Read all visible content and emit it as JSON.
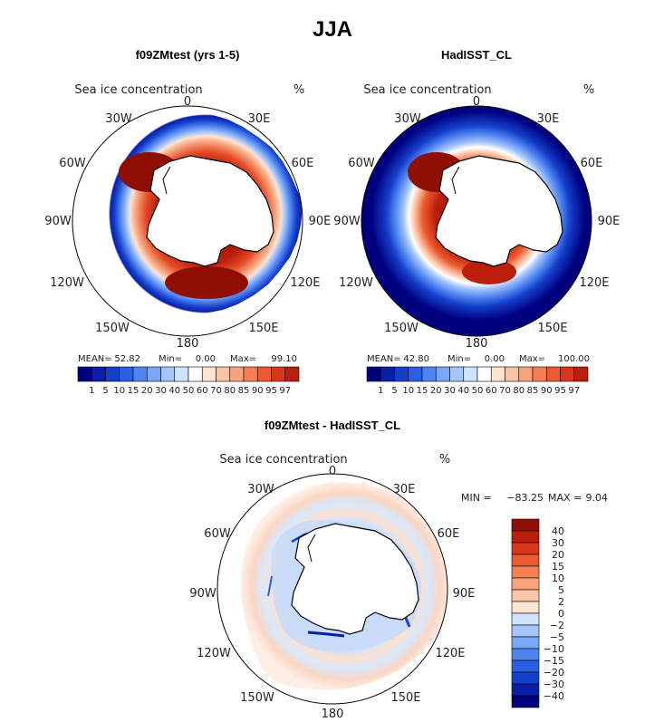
{
  "figure_title": "JJA",
  "colors": {
    "ice_scale": [
      "#00007f",
      "#0a1fa8",
      "#1540cc",
      "#2a5fe3",
      "#4f84f0",
      "#7aa6f6",
      "#a6c6fb",
      "#d0e3fe",
      "#ffffff",
      "#fde3d2",
      "#fbc4a6",
      "#f8a27c",
      "#f57f52",
      "#ed5a2f",
      "#d9361a",
      "#b91f0c",
      "#8f0f04",
      "#6b0000"
    ],
    "diff_scale": [
      "#00007f",
      "#0a1fa8",
      "#1540cc",
      "#2a5fe3",
      "#4f84f0",
      "#7aa6f6",
      "#a6c6fb",
      "#d0e3fe",
      "#fde3d2",
      "#fbc4a6",
      "#f8a27c",
      "#f57f52",
      "#ed5a2f",
      "#d9361a",
      "#b91f0c",
      "#8f0f04"
    ]
  },
  "panels": [
    {
      "title": "f09ZMtest (yrs 1-5)",
      "variable": "Sea ice concentration",
      "units": "%",
      "stats": {
        "mean_label": "MEAN=",
        "mean": "52.82",
        "min_label": "Min=",
        "min": "0.00",
        "max_label": "Max=",
        "max": "99.10"
      },
      "colorbar_labels": [
        "1",
        "5",
        "10",
        "15",
        "20",
        "30",
        "40",
        "50",
        "60",
        "70",
        "80",
        "85",
        "90",
        "95",
        "97"
      ],
      "lon_labels": {
        "top": "0",
        "tr": "30E",
        "right1": "60E",
        "right2": "90E",
        "right3": "120E",
        "br": "150E",
        "bottom": "180",
        "bl": "150W",
        "left3": "120W",
        "left2": "90W",
        "left1": "60W",
        "tl": "30W"
      }
    },
    {
      "title": "HadISST_CL",
      "variable": "Sea ice concentration",
      "units": "%",
      "stats": {
        "mean_label": "MEAN=",
        "mean": "42.80",
        "min_label": "Min=",
        "min": "0.00",
        "max_label": "Max=",
        "max": "100.00"
      },
      "colorbar_labels": [
        "1",
        "5",
        "10",
        "15",
        "20",
        "30",
        "40",
        "50",
        "60",
        "70",
        "80",
        "85",
        "90",
        "95",
        "97"
      ],
      "lon_labels": {
        "top": "0",
        "tr": "30E",
        "right1": "60E",
        "right2": "90E",
        "right3": "120E",
        "br": "150E",
        "bottom": "180",
        "bl": "150W",
        "left3": "120W",
        "left2": "90W",
        "left1": "60W",
        "tl": "30W"
      }
    },
    {
      "title": "f09ZMtest - HadISST_CL",
      "variable": "Sea ice concentration",
      "units": "%",
      "stats": {
        "min_label": "MIN =",
        "min": "−83.25",
        "max_label": "MAX =",
        "max": "9.04"
      },
      "colorbar_labels": [
        "40",
        "30",
        "20",
        "15",
        "10",
        "5",
        "2",
        "0",
        "−2",
        "−5",
        "−10",
        "−15",
        "−20",
        "−30",
        "−40"
      ],
      "lon_labels": {
        "top": "0",
        "tr": "30E",
        "right1": "60E",
        "right2": "90E",
        "right3": "120E",
        "br": "150E",
        "bottom": "180",
        "bl": "150W",
        "left3": "120W",
        "left2": "90W",
        "left1": "60W",
        "tl": "30W"
      }
    }
  ]
}
